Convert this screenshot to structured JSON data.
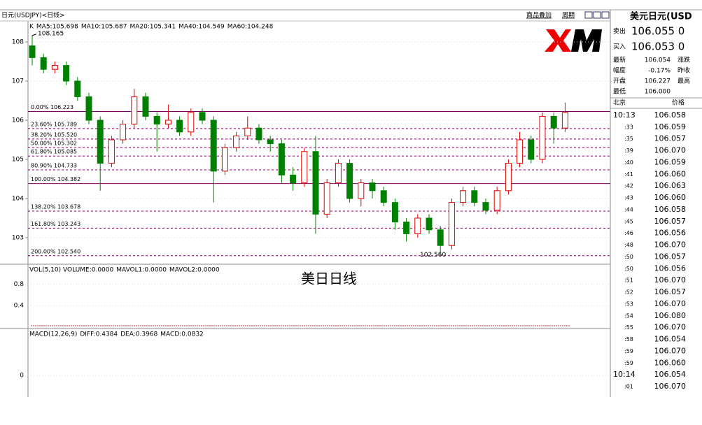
{
  "header": {
    "title": "日元(USDJPY)<日线>",
    "links": [
      "商品叠加",
      "周期"
    ]
  },
  "price_panel": {
    "legend": [
      {
        "text": "K",
        "color": "#000000"
      },
      {
        "text": "MA5:105.698",
        "color": "#000080"
      },
      {
        "text": "MA10:105.687",
        "color": "#e08020"
      },
      {
        "text": "MA20:105.341",
        "color": "#202080"
      },
      {
        "text": "MA40:104.549",
        "color": "#0000c0"
      },
      {
        "text": "MA60:104.248",
        "color": "#e070e0"
      }
    ],
    "ylim": [
      102.4,
      108.5
    ],
    "yticks": [
      103,
      104,
      105,
      106,
      107,
      108
    ],
    "high_label": "108.165",
    "low_label": "102.560",
    "up_color": "#e00000",
    "down_color": "#008000",
    "candles": [
      [
        107.9,
        108.165,
        107.4,
        107.6
      ],
      [
        107.6,
        107.7,
        107.2,
        107.3
      ],
      [
        107.3,
        107.5,
        107.2,
        107.4
      ],
      [
        107.4,
        107.5,
        106.9,
        107.0
      ],
      [
        107.0,
        107.1,
        106.5,
        106.6
      ],
      [
        106.6,
        106.7,
        105.9,
        106.0
      ],
      [
        106.0,
        106.1,
        104.2,
        104.9
      ],
      [
        104.9,
        105.6,
        104.8,
        105.5
      ],
      [
        105.5,
        106.0,
        105.4,
        105.9
      ],
      [
        105.9,
        106.8,
        105.8,
        106.6
      ],
      [
        106.6,
        106.7,
        106.0,
        106.1
      ],
      [
        106.1,
        106.2,
        105.2,
        105.9
      ],
      [
        105.9,
        106.4,
        105.8,
        106.0
      ],
      [
        106.0,
        106.1,
        105.6,
        105.7
      ],
      [
        105.7,
        106.3,
        105.6,
        106.2
      ],
      [
        106.2,
        106.3,
        105.9,
        106.0
      ],
      [
        106.0,
        106.1,
        103.9,
        104.7
      ],
      [
        104.7,
        105.4,
        104.6,
        105.3
      ],
      [
        105.3,
        105.7,
        105.2,
        105.6
      ],
      [
        105.6,
        106.1,
        105.5,
        105.8
      ],
      [
        105.8,
        105.9,
        105.4,
        105.5
      ],
      [
        105.5,
        105.6,
        105.2,
        105.4
      ],
      [
        105.4,
        105.5,
        104.4,
        104.6
      ],
      [
        104.6,
        104.8,
        104.2,
        104.4
      ],
      [
        104.4,
        105.3,
        104.3,
        105.2
      ],
      [
        105.2,
        105.6,
        103.1,
        103.6
      ],
      [
        103.6,
        104.5,
        103.5,
        104.4
      ],
      [
        104.4,
        105.0,
        104.3,
        104.9
      ],
      [
        104.9,
        105.0,
        103.9,
        104.0
      ],
      [
        104.0,
        104.5,
        103.8,
        104.4
      ],
      [
        104.4,
        104.5,
        104.0,
        104.2
      ],
      [
        104.2,
        104.3,
        103.8,
        103.9
      ],
      [
        103.9,
        104.0,
        103.2,
        103.4
      ],
      [
        103.4,
        103.5,
        102.9,
        103.1
      ],
      [
        103.1,
        103.6,
        103.0,
        103.5
      ],
      [
        103.5,
        103.6,
        103.1,
        103.2
      ],
      [
        103.2,
        103.3,
        102.56,
        102.8
      ],
      [
        102.8,
        104.0,
        102.7,
        103.9
      ],
      [
        103.9,
        104.3,
        103.8,
        104.2
      ],
      [
        104.2,
        104.3,
        103.8,
        103.9
      ],
      [
        103.9,
        104.0,
        103.6,
        103.7
      ],
      [
        103.7,
        104.3,
        103.6,
        104.2
      ],
      [
        104.2,
        105.0,
        104.1,
        104.9
      ],
      [
        104.9,
        105.7,
        104.8,
        105.5
      ],
      [
        105.5,
        105.6,
        104.9,
        105.0
      ],
      [
        105.0,
        106.2,
        104.9,
        106.1
      ],
      [
        106.1,
        106.2,
        105.4,
        105.8
      ],
      [
        105.8,
        106.45,
        105.7,
        106.2
      ]
    ],
    "fib_levels": [
      {
        "label": "0.00% 106.223",
        "value": 106.223,
        "solid": true
      },
      {
        "label": "23.60% 105.789",
        "value": 105.789,
        "solid": false
      },
      {
        "label": "38.20% 105.520",
        "value": 105.52,
        "solid": false
      },
      {
        "label": "50.00% 105.302",
        "value": 105.302,
        "solid": false
      },
      {
        "label": "61.80% 105.085",
        "value": 105.085,
        "solid": false
      },
      {
        "label": "80.90% 104.733",
        "value": 104.733,
        "solid": false
      },
      {
        "label": "100.00% 104.382",
        "value": 104.382,
        "solid": true
      },
      {
        "label": "138.20% 103.678",
        "value": 103.678,
        "solid": false
      },
      {
        "label": "161.80% 103.243",
        "value": 103.243,
        "solid": false
      },
      {
        "label": "200.00% 102.540",
        "value": 102.54,
        "solid": false
      }
    ],
    "watermark": "美日日线"
  },
  "volume_panel": {
    "legend": [
      {
        "text": "VOL(5,10) VOLUME:0.0000",
        "color": "#404040"
      },
      {
        "text": "MAVOL1:0.0000",
        "color": "#202080"
      },
      {
        "text": "MAVOL2:0.0000",
        "color": "#e08020"
      }
    ],
    "ylim": [
      0,
      1.0
    ],
    "yticks": [
      0.4,
      0.8
    ]
  },
  "macd_panel": {
    "legend": [
      {
        "text": "MACD(12,26,9)",
        "color": "#404040"
      },
      {
        "text": "DIFF:0.4384",
        "color": "#000080"
      },
      {
        "text": "DEA:0.3968",
        "color": "#e08020"
      },
      {
        "text": "MACD:0.0832",
        "color": "#404040"
      }
    ],
    "yticks": [
      0
    ]
  },
  "quote_panel": {
    "title": "美元日元(USD",
    "sell": {
      "label": "卖出",
      "value": "106.055 0"
    },
    "buy": {
      "label": "买入",
      "value": "106.053 0"
    },
    "stats": [
      {
        "label": "最新",
        "value": "106.054",
        "tag": "涨跌"
      },
      {
        "label": "幅度",
        "value": "-0.17%",
        "tag": "昨收"
      },
      {
        "label": "开盘",
        "value": "106.227",
        "tag": "最高"
      },
      {
        "label": "最低",
        "value": "106.000",
        "tag": ""
      }
    ],
    "list_header": [
      "北京",
      "价格"
    ],
    "ticks": [
      [
        "10:13",
        "106.058"
      ],
      [
        ":33",
        "106.059"
      ],
      [
        ":35",
        "106.057"
      ],
      [
        ":39",
        "106.070"
      ],
      [
        ":40",
        "106.059"
      ],
      [
        ":41",
        "106.060"
      ],
      [
        ":42",
        "106.063"
      ],
      [
        ":43",
        "106.060"
      ],
      [
        ":44",
        "106.058"
      ],
      [
        ":45",
        "106.057"
      ],
      [
        ":46",
        "106.056"
      ],
      [
        ":48",
        "106.070"
      ],
      [
        ":50",
        "106.057"
      ],
      [
        ":50",
        "106.056"
      ],
      [
        ":51",
        "106.070"
      ],
      [
        ":52",
        "106.057"
      ],
      [
        ":53",
        "106.070"
      ],
      [
        ":54",
        "106.080"
      ],
      [
        ":55",
        "106.070"
      ],
      [
        ":58",
        "106.054"
      ],
      [
        ":59",
        "106.070"
      ],
      [
        ":59",
        "106.060"
      ],
      [
        "10:14",
        "106.054"
      ],
      [
        ":01",
        "106.070"
      ]
    ]
  }
}
